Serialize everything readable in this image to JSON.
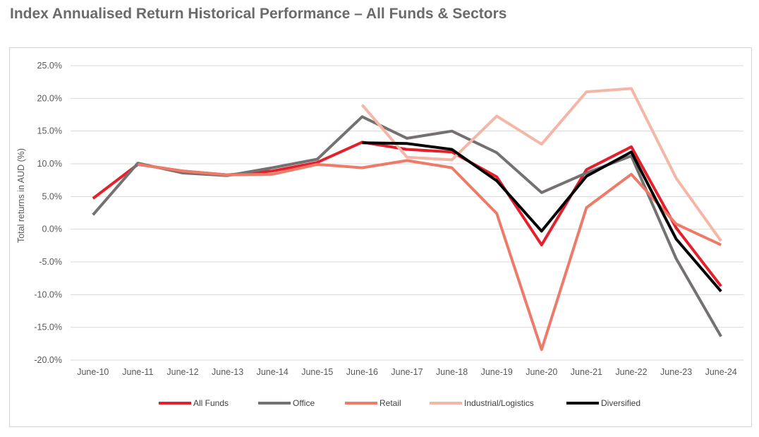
{
  "title": "Index Annualised Return Historical Performance – All Funds & Sectors",
  "chart_data": {
    "type": "line",
    "title": "Index Annualised Return Historical Performance – All Funds & Sectors",
    "xlabel": "",
    "ylabel": "Total returns in AUD (%)",
    "ylim": [
      -20,
      25
    ],
    "yticks": [
      25,
      20,
      15,
      10,
      5,
      0,
      -5,
      -10,
      -15,
      -20
    ],
    "ytick_labels": [
      "25.0%",
      "20.0%",
      "15.0%",
      "10.0%",
      "5.0%",
      "0.0%",
      "-5.0%",
      "-10.0%",
      "-15.0%",
      "-20.0%"
    ],
    "categories": [
      "June-10",
      "June-11",
      "June-12",
      "June-13",
      "June-14",
      "June-15",
      "June-16",
      "June-17",
      "June-18",
      "June-19",
      "June-20",
      "June-21",
      "June-22",
      "June-23",
      "June-24"
    ],
    "grid": "horizontal",
    "legend_position": "bottom",
    "series": [
      {
        "name": "All Funds",
        "color": "#e3202b",
        "values": [
          4.7,
          9.9,
          8.9,
          8.3,
          8.9,
          10.2,
          13.3,
          12.2,
          11.8,
          8.0,
          -2.4,
          9.1,
          12.6,
          0.2,
          -8.7
        ]
      },
      {
        "name": "Office",
        "color": "#767171",
        "values": [
          2.2,
          10.1,
          8.6,
          8.2,
          9.4,
          10.7,
          17.2,
          13.9,
          15.0,
          11.7,
          5.6,
          8.6,
          11.2,
          -4.5,
          -16.4
        ]
      },
      {
        "name": "Retail",
        "color": "#ec7b6a",
        "values": [
          null,
          9.9,
          8.9,
          8.3,
          8.4,
          9.9,
          9.4,
          10.5,
          9.4,
          2.4,
          -18.4,
          3.3,
          8.4,
          0.8,
          -2.4
        ]
      },
      {
        "name": "Industrial/Logistics",
        "color": "#f4b6a6",
        "values": [
          null,
          null,
          null,
          null,
          null,
          null,
          19.0,
          11.0,
          10.6,
          17.3,
          13.0,
          21.0,
          21.5,
          7.8,
          -1.8
        ]
      },
      {
        "name": "Diversified",
        "color": "#000000",
        "values": [
          null,
          null,
          null,
          null,
          null,
          null,
          13.2,
          13.1,
          12.2,
          7.4,
          -0.3,
          8.1,
          11.8,
          -1.5,
          -9.5
        ]
      }
    ]
  }
}
